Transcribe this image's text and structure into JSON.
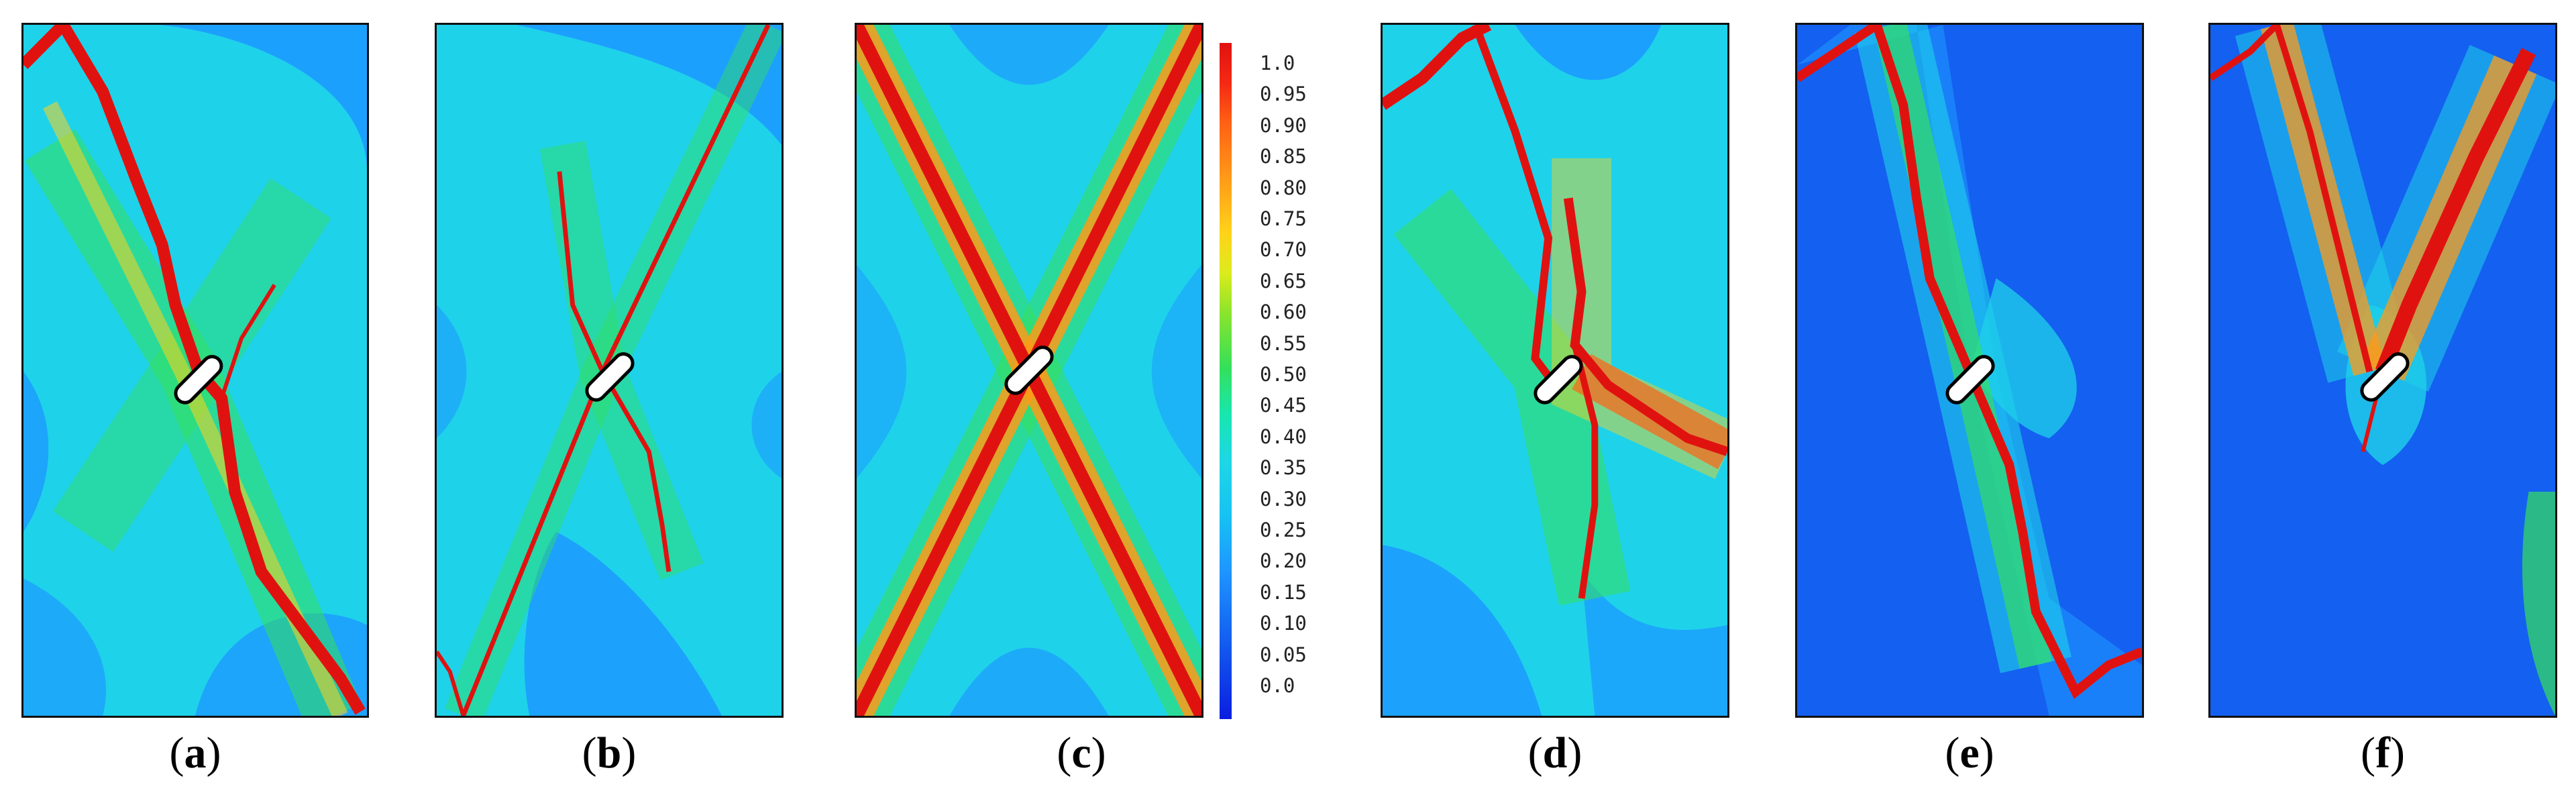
{
  "captions": {
    "a": {
      "open": "(",
      "letter": "a",
      "close": ")"
    },
    "b": {
      "open": "(",
      "letter": "b",
      "close": ")"
    },
    "c": {
      "open": "(",
      "letter": "c",
      "close": ")"
    },
    "d": {
      "open": "(",
      "letter": "d",
      "close": ")"
    },
    "e": {
      "open": "(",
      "letter": "e",
      "close": ")"
    },
    "f": {
      "open": "(",
      "letter": "f",
      "close": ")"
    }
  },
  "colorbar": {
    "labels": [
      "1.0",
      "0.95",
      "0.90",
      "0.85",
      "0.80",
      "0.75",
      "0.70",
      "0.65",
      "0.60",
      "0.55",
      "0.50",
      "0.45",
      "0.40",
      "0.35",
      "0.30",
      "0.25",
      "0.20",
      "0.15",
      "0.10",
      "0.05",
      "0.0"
    ],
    "colors": {
      "min": "#0a1ee0",
      "low": "#1e96ff",
      "background": "#1ed6e6",
      "mid": "#34e05a",
      "high": "#ffd21a",
      "max": "#e01210"
    }
  }
}
